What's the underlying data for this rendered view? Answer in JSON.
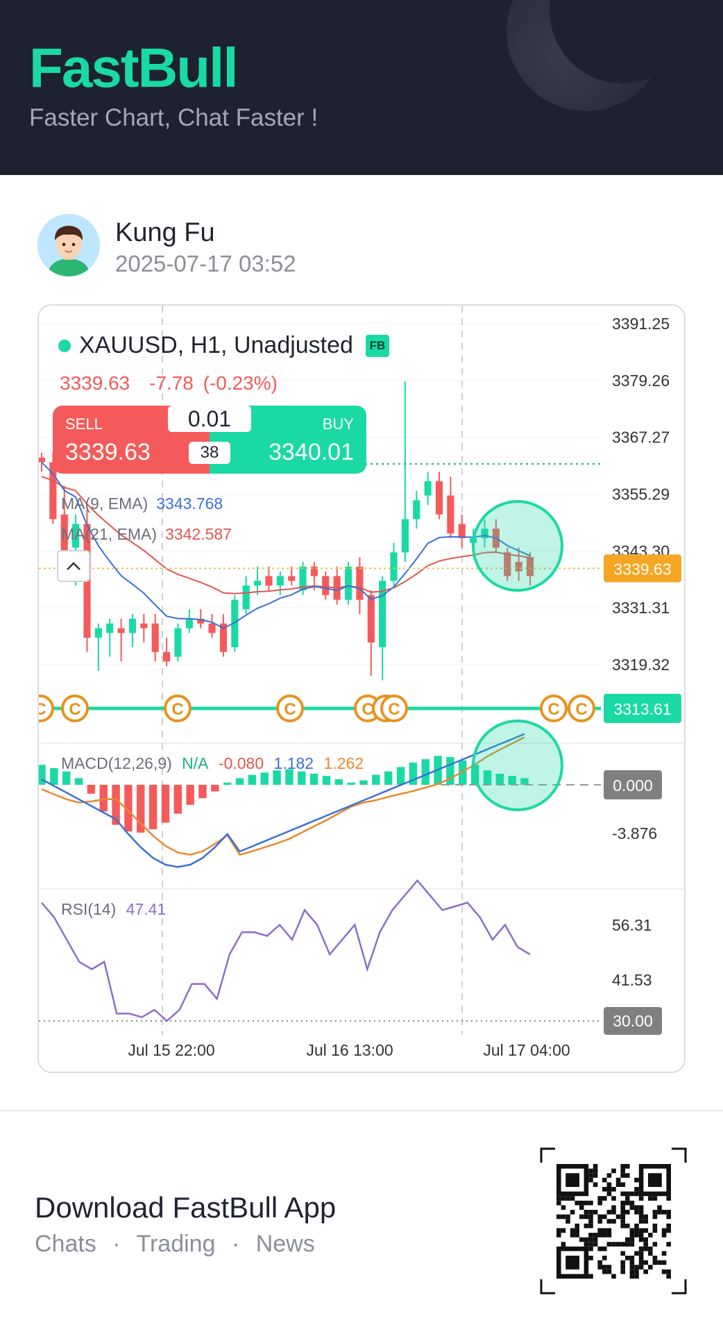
{
  "header": {
    "brand": "FastBull",
    "tagline": "Faster Chart, Chat Faster !"
  },
  "post": {
    "user": "Kung Fu",
    "time": "2025-07-17 03:52"
  },
  "instrument": {
    "title": "XAUUSD, H1, Unadjusted",
    "badge": "FB",
    "last": "3339.63",
    "change": "-7.78",
    "change_pct": "(-0.23%)"
  },
  "trade": {
    "sell_label": "SELL",
    "buy_label": "BUY",
    "lot": "0.01",
    "spread": "38",
    "sell_price": "3339.63",
    "buy_price": "3340.01"
  },
  "ma": [
    {
      "label": "MA(9, EMA)",
      "value": "3343.768",
      "color": "#3b6fd8"
    },
    {
      "label": "MA(21, EMA)",
      "value": "3342.587",
      "color": "#e0554f"
    }
  ],
  "macd": {
    "label": "MACD(12,26,9)",
    "hist": "N/A",
    "diff": "-0.080",
    "dea": "1.182",
    "macd": "1.262",
    "ticks": [
      "0.000",
      "-3.876"
    ]
  },
  "rsi": {
    "label": "RSI(14)",
    "value": "47.41",
    "ticks": [
      "56.31",
      "41.53",
      "30.00"
    ]
  },
  "footer": {
    "title": "Download FastBull App",
    "items": [
      "Chats",
      "Trading",
      "News"
    ],
    "sep": "·"
  },
  "colors": {
    "up": "#1ad9a5",
    "down": "#f55a5a",
    "accent": "#1ad9a5",
    "price_tag": "#f5a623",
    "ma9": "#3b6fd8",
    "ma21": "#e0554f",
    "rsi": "#8a6fc7",
    "coin": "#e8921c"
  },
  "chart_data": {
    "type": "candlestick",
    "price_ticks": [
      "3391.25",
      "3379.26",
      "3367.27",
      "3355.29",
      "3343.30",
      "3331.31",
      "3319.32"
    ],
    "ylim": [
      3313.61,
      3391.25
    ],
    "current_price_tag": "3339.63",
    "marker_line_tag": "3313.61",
    "x_ticks": [
      "Jul 15 22:00",
      "Jul 16 13:00",
      "Jul 17 04:00"
    ],
    "candles": [
      [
        3363,
        3364,
        3360,
        3362
      ],
      [
        3362,
        3364,
        3349,
        3350
      ],
      [
        3351,
        3357,
        3340,
        3342
      ],
      [
        3344,
        3351,
        3336,
        3349
      ],
      [
        3349,
        3352,
        3322,
        3325
      ],
      [
        3325,
        3328,
        3318,
        3327
      ],
      [
        3326,
        3329,
        3321,
        3328
      ],
      [
        3327,
        3329,
        3320,
        3326
      ],
      [
        3326,
        3330,
        3323,
        3329
      ],
      [
        3328,
        3330,
        3324,
        3327
      ],
      [
        3328,
        3330,
        3320,
        3322
      ],
      [
        3322,
        3325,
        3319,
        3320
      ],
      [
        3321,
        3328,
        3320,
        3327
      ],
      [
        3327,
        3331,
        3326,
        3329
      ],
      [
        3329,
        3331,
        3327,
        3328
      ],
      [
        3328,
        3330,
        3325,
        3326
      ],
      [
        3328,
        3330,
        3321,
        3322
      ],
      [
        3323,
        3334,
        3322,
        3333
      ],
      [
        3331,
        3338,
        3330,
        3336
      ],
      [
        3336,
        3340,
        3334,
        3337
      ],
      [
        3338,
        3340,
        3335,
        3336
      ],
      [
        3336,
        3339,
        3334,
        3338
      ],
      [
        3338,
        3340,
        3336,
        3337
      ],
      [
        3335,
        3341,
        3334,
        3340
      ],
      [
        3340,
        3341,
        3335,
        3338
      ],
      [
        3338,
        3339,
        3333,
        3334
      ],
      [
        3338,
        3340,
        3332,
        3333
      ],
      [
        3333,
        3341,
        3332,
        3340
      ],
      [
        3340,
        3342,
        3330,
        3333
      ],
      [
        3334,
        3335,
        3317,
        3324
      ],
      [
        3323,
        3338,
        3316,
        3337
      ],
      [
        3337,
        3345,
        3336,
        3343
      ],
      [
        3343,
        3379,
        3341,
        3350
      ],
      [
        3350,
        3356,
        3348,
        3354
      ],
      [
        3355,
        3360,
        3353,
        3358
      ],
      [
        3358,
        3360,
        3350,
        3351
      ],
      [
        3355,
        3359,
        3346,
        3347
      ],
      [
        3349,
        3351,
        3344,
        3346
      ],
      [
        3345,
        3348,
        3342,
        3346
      ],
      [
        3346,
        3350,
        3344,
        3348
      ],
      [
        3348,
        3350,
        3343,
        3344
      ],
      [
        3343,
        3344,
        3337,
        3338
      ],
      [
        3341,
        3344,
        3337,
        3339
      ],
      [
        3342,
        3343,
        3336,
        3338
      ]
    ],
    "macd_hist": [
      1.8,
      1.5,
      1.2,
      0.6,
      -0.8,
      -2.4,
      -3.6,
      -4.2,
      -4.3,
      -4.0,
      -3.4,
      -2.6,
      -1.8,
      -1.2,
      -0.6,
      0.2,
      0.6,
      0.9,
      1.1,
      1.3,
      1.4,
      1.2,
      1.0,
      0.8,
      0.5,
      0.2,
      0.4,
      0.9,
      1.2,
      1.6,
      2.0,
      2.3,
      2.6,
      2.5,
      2.2,
      1.8,
      1.3,
      1.0,
      0.8,
      0.6
    ],
    "rsi_values": [
      62,
      58,
      52,
      46,
      44,
      46,
      32,
      32,
      31,
      33,
      30,
      33,
      40,
      40,
      36,
      48,
      54,
      54,
      53,
      56,
      52,
      60,
      56,
      48,
      52,
      56,
      44,
      54,
      60,
      64,
      68,
      64,
      60,
      61,
      62,
      58,
      52,
      56,
      50,
      48
    ]
  }
}
